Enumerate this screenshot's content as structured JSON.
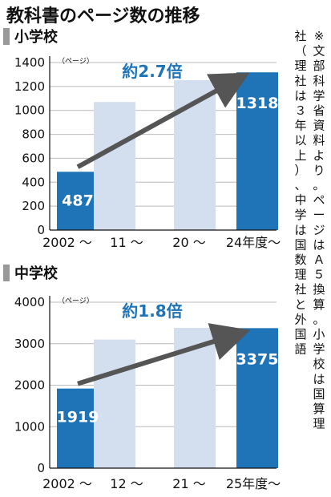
{
  "title": "教科書のページ数の推移",
  "note": {
    "lines": [
      "※文部科学省資料より。ページはＡ５換算。小学校は国算理",
      "社（理社は３年以上）、中学は国数理社と外国語"
    ]
  },
  "colors": {
    "accent": "#1f74b8",
    "bar_light": "#d3deef",
    "arrow": "#555555",
    "marker": "#999999"
  },
  "chart_data": [
    {
      "type": "bar",
      "title": "小学校",
      "ylabel": "（ページ）",
      "ylim": [
        0,
        1400
      ],
      "yticks": [
        0,
        200,
        400,
        600,
        800,
        1000,
        1200,
        1400
      ],
      "categories": [
        "2002 ～",
        "11 ～",
        "20 ～",
        "24年度～"
      ],
      "values": [
        487,
        1070,
        1253,
        1318
      ],
      "value_labels": [
        "487",
        "",
        "",
        "1318"
      ],
      "highlighted": [
        true,
        false,
        false,
        true
      ],
      "annotation": "約2.7倍"
    },
    {
      "type": "bar",
      "title": "中学校",
      "ylabel": "（ページ）",
      "ylim": [
        0,
        4000
      ],
      "yticks": [
        0,
        1000,
        2000,
        3000,
        4000
      ],
      "categories": [
        "2002 ～",
        "12 ～",
        "21 ～",
        "25年度～"
      ],
      "values": [
        1919,
        3100,
        3380,
        3375
      ],
      "value_labels": [
        "1919",
        "",
        "",
        "3375"
      ],
      "highlighted": [
        true,
        false,
        false,
        true
      ],
      "annotation": "約1.8倍"
    }
  ]
}
